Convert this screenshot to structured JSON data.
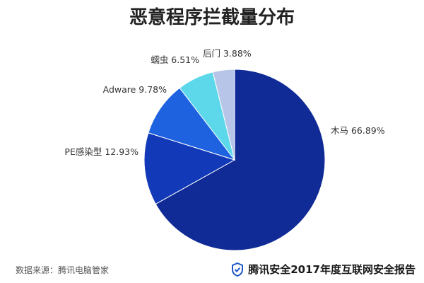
{
  "title": "恶意程序拦截量分布",
  "chart_data": {
    "type": "pie",
    "title": "恶意程序拦截量分布",
    "slices": [
      {
        "name": "木马",
        "value": 66.89,
        "label": "木马 66.89%",
        "color": "#102b96"
      },
      {
        "name": "PE感染型",
        "value": 12.93,
        "label": "PE感染型 12.93%",
        "color": "#1239b8"
      },
      {
        "name": "Adware",
        "value": 9.78,
        "label": "Adware 9.78%",
        "color": "#1e62e0"
      },
      {
        "name": "蠕虫",
        "value": 6.51,
        "label": "蠕虫 6.51%",
        "color": "#5cd8ea"
      },
      {
        "name": "后门",
        "value": 3.88,
        "label": "后门 3.88%",
        "color": "#b7c6e8"
      }
    ],
    "start_angle_deg": 0,
    "direction": "clockwise"
  },
  "footer": {
    "source": "数据来源：腾讯电脑管家",
    "brand": "腾讯安全2017年度互联网安全报告",
    "brand_icon": "shield-check-icon"
  }
}
